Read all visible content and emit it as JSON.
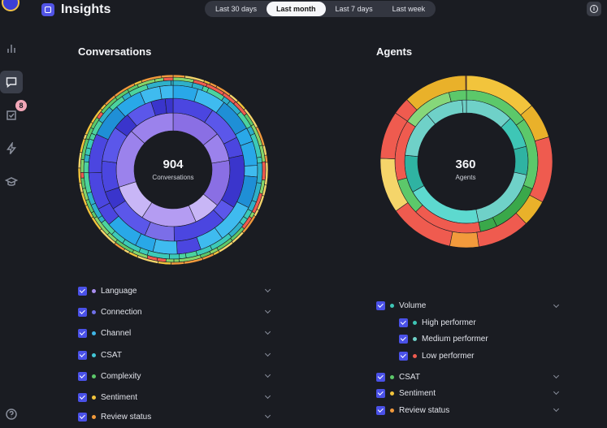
{
  "header": {
    "title": "Insights",
    "ranges": [
      "Last 30 days",
      "Last month",
      "Last 7 days",
      "Last week"
    ],
    "active_range": "Last month"
  },
  "sidebar": {
    "tasks_badge": "8"
  },
  "conversations": {
    "title": "Conversations",
    "total": "904",
    "total_label": "Conversations",
    "filters": [
      {
        "label": "Language",
        "color": "#a98ef0"
      },
      {
        "label": "Connection",
        "color": "#6f6fe8"
      },
      {
        "label": "Channel",
        "color": "#3fb6e6"
      },
      {
        "label": "CSAT",
        "color": "#42c7d6"
      },
      {
        "label": "Complexity",
        "color": "#5cc86a"
      },
      {
        "label": "Sentiment",
        "color": "#f2c43c"
      },
      {
        "label": "Review status",
        "color": "#f29a3c"
      }
    ]
  },
  "agents": {
    "title": "Agents",
    "total": "360",
    "total_label": "Agents",
    "volume": {
      "label": "Volume",
      "color": "#3ec6b6"
    },
    "volume_children": [
      {
        "label": "High performer",
        "color": "#3ec6b6"
      },
      {
        "label": "Medium performer",
        "color": "#6fd1c8"
      },
      {
        "label": "Low performer",
        "color": "#ef5b4f"
      }
    ],
    "filters": [
      {
        "label": "CSAT",
        "color": "#5cc86a"
      },
      {
        "label": "Sentiment",
        "color": "#f2c43c"
      },
      {
        "label": "Review status",
        "color": "#f29a3c"
      }
    ]
  },
  "colors": {
    "accent": "#4a51e8",
    "background": "#1a1c22"
  }
}
